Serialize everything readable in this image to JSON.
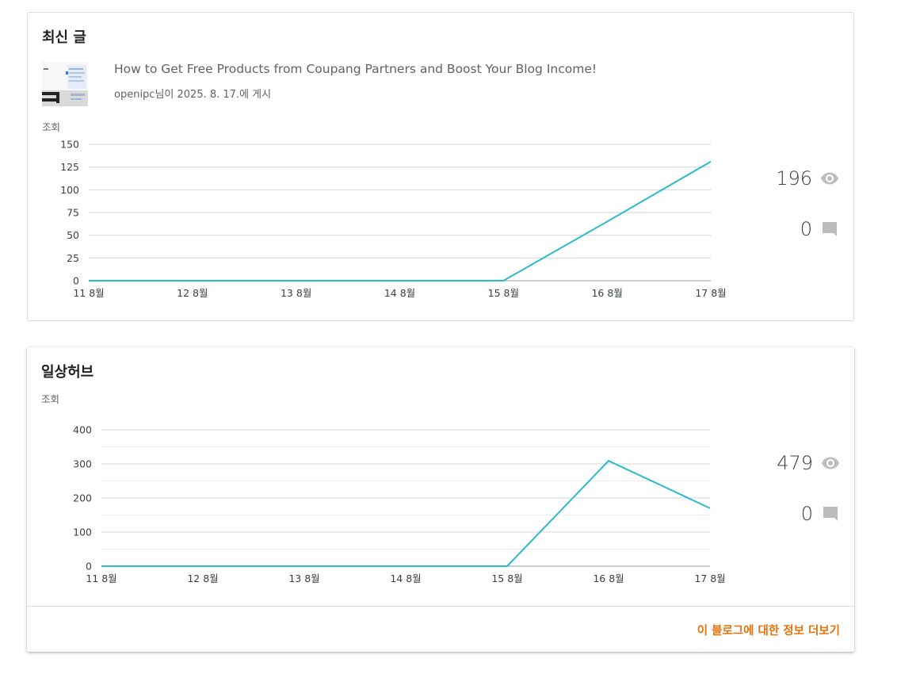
{
  "recent_posts": {
    "title": "최신 글",
    "post": {
      "title": "How to Get Free Products from Coupang Partners and Boost Your Blog Income!",
      "meta": "openipc님이 2025. 8. 17.에 게시"
    },
    "y_label": "조회",
    "views": "196",
    "comments": "0"
  },
  "blog": {
    "title": "일상허브",
    "y_label": "조회",
    "views": "479",
    "comments": "0",
    "more_link": "이 블로그에 대한 정보 더보기"
  },
  "colors": {
    "line": "#2bbbc9",
    "link": "#e8710a",
    "icon": "#bdbdbd"
  },
  "chart_data": [
    {
      "type": "line",
      "title": "",
      "xlabel": "",
      "ylabel": "조회",
      "categories": [
        "11 8월",
        "12 8월",
        "13 8월",
        "14 8월",
        "15 8월",
        "16 8월",
        "17 8월"
      ],
      "yticks": [
        0,
        25,
        50,
        75,
        100,
        125,
        150
      ],
      "ylim": [
        0,
        150
      ],
      "grid": true,
      "series": [
        {
          "values": [
            0,
            0,
            0,
            0,
            0,
            65,
            131
          ]
        }
      ]
    },
    {
      "type": "line",
      "title": "",
      "xlabel": "",
      "ylabel": "조회",
      "categories": [
        "11 8월",
        "12 8월",
        "13 8월",
        "14 8월",
        "15 8월",
        "16 8월",
        "17 8월"
      ],
      "yticks": [
        0,
        100,
        200,
        300,
        400
      ],
      "ylim": [
        0,
        400
      ],
      "grid": true,
      "series": [
        {
          "values": [
            0,
            0,
            0,
            0,
            0,
            309,
            170
          ]
        }
      ]
    }
  ]
}
